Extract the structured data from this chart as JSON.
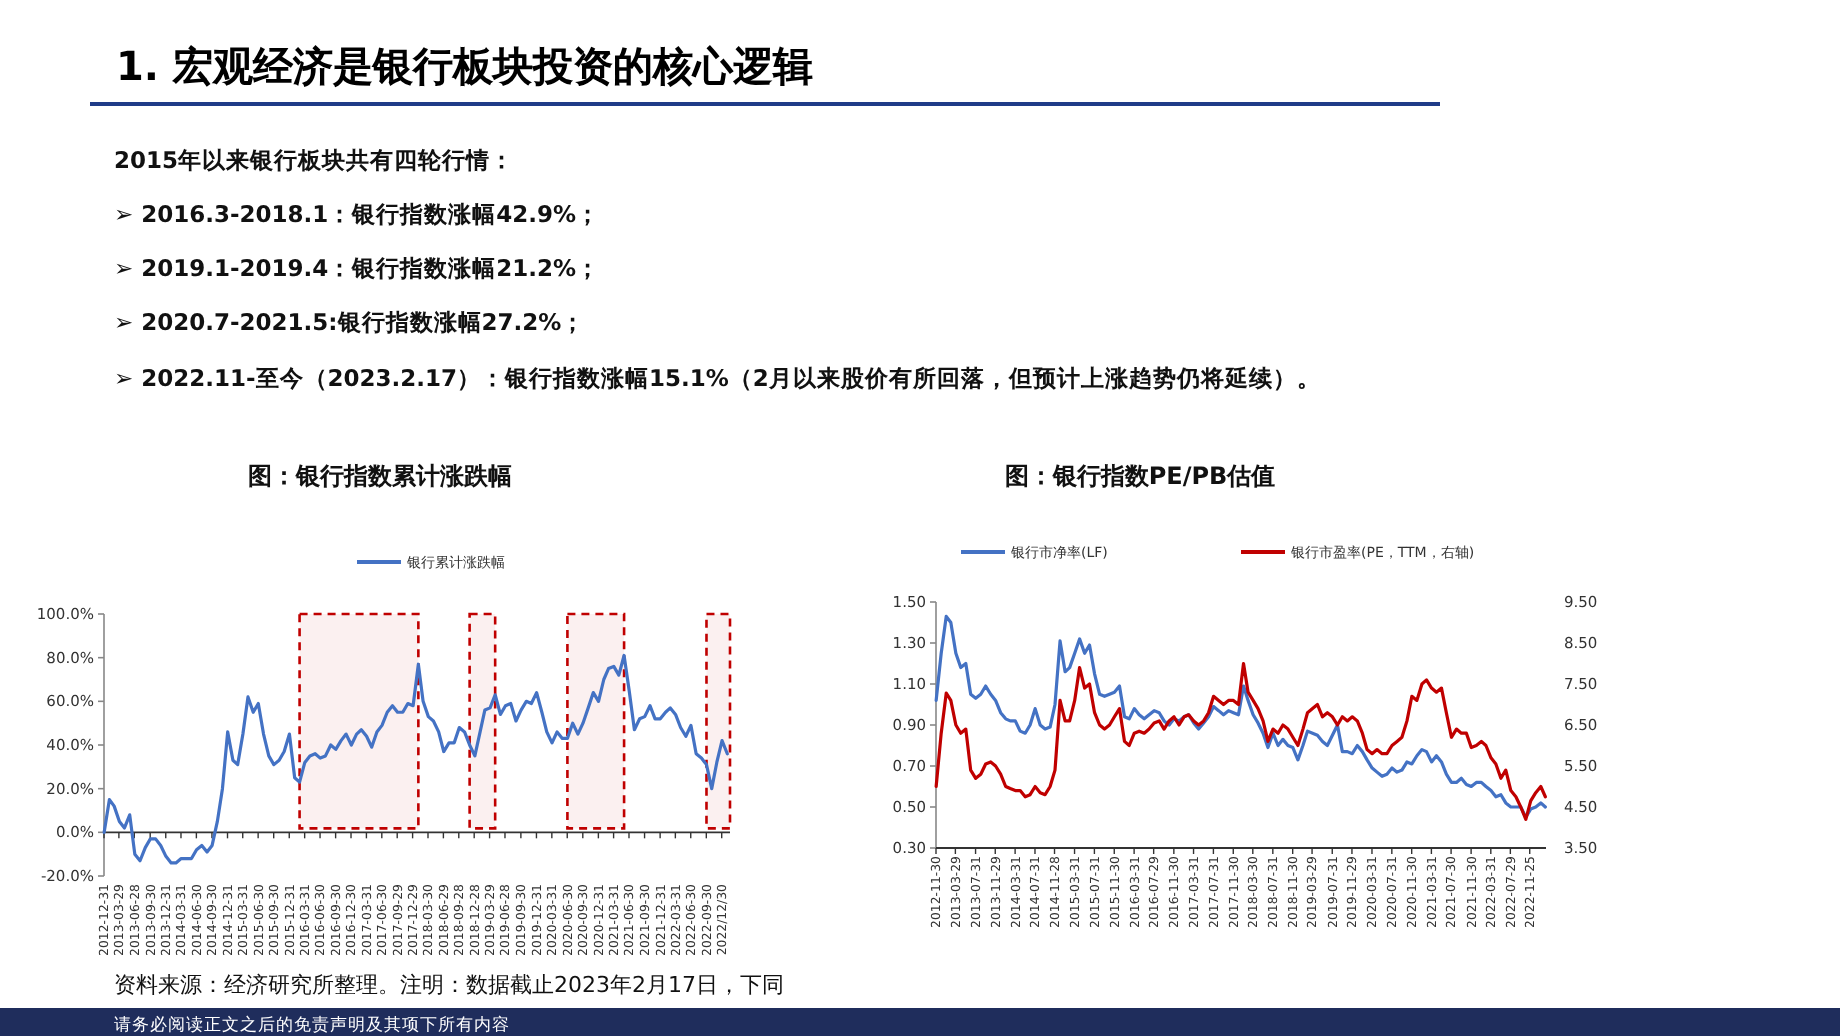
{
  "chart_data": [
    {
      "type": "other",
      "title": "1.  宏观经济是银行板块投资的核心逻辑",
      "annotations": [
        "2015年以来银行板块共有四轮行情：",
        "➢ 2016.3-2018.1：银行指数涨幅42.9%；",
        "➢ 2019.1-2019.4：银行指数涨幅21.2%；",
        "➢ 2020.7-2021.5:银行指数涨幅27.2%；",
        "➢ 2022.11-至今（2023.2.17）：银行指数涨幅15.1%（2月以来股价有所回落，但预计上涨趋势仍将延续）。",
        "资料来源：经济研究所整理。注明：数据截止2023年2月17日，下同",
        "请务必阅读正文之后的免责声明及其项下所有内容"
      ]
    },
    {
      "type": "line",
      "title": "图：银行指数累计涨跌幅",
      "legend": "top",
      "x": [
        "2013-01",
        "2013-02",
        "2013-03",
        "2013-04",
        "2013-05",
        "2013-06",
        "2013-07",
        "2013-08",
        "2013-09",
        "2013-10",
        "2013-11",
        "2013-12",
        "2014-01",
        "2014-02",
        "2014-03",
        "2014-04",
        "2014-05",
        "2014-06",
        "2014-07",
        "2014-08",
        "2014-09",
        "2014-10",
        "2014-11",
        "2014-12",
        "2015-01",
        "2015-02",
        "2015-03",
        "2015-04",
        "2015-05",
        "2015-06",
        "2015-07",
        "2015-08",
        "2015-09",
        "2015-10",
        "2015-11",
        "2015-12",
        "2016-01",
        "2016-02",
        "2016-03",
        "2016-04",
        "2016-05",
        "2016-06",
        "2016-07",
        "2016-08",
        "2016-09",
        "2016-10",
        "2016-11",
        "2016-12",
        "2017-01",
        "2017-02",
        "2017-03",
        "2017-04",
        "2017-05",
        "2017-06",
        "2017-07",
        "2017-08",
        "2017-09",
        "2017-10",
        "2017-11",
        "2017-12",
        "2018-01",
        "2018-02",
        "2018-03",
        "2018-04",
        "2018-05",
        "2018-06",
        "2018-07",
        "2018-08",
        "2018-09",
        "2018-10",
        "2018-11",
        "2018-12",
        "2019-01",
        "2019-02",
        "2019-03",
        "2019-04",
        "2019-05",
        "2019-06",
        "2019-07",
        "2019-08",
        "2019-09",
        "2019-10",
        "2019-11",
        "2019-12",
        "2020-01",
        "2020-02",
        "2020-03",
        "2020-04",
        "2020-05",
        "2020-06",
        "2020-07",
        "2020-08",
        "2020-09",
        "2020-10",
        "2020-11",
        "2020-12",
        "2021-01",
        "2021-02",
        "2021-03",
        "2021-04",
        "2021-05",
        "2021-06",
        "2021-07",
        "2021-08",
        "2021-09",
        "2021-10",
        "2021-11",
        "2021-12",
        "2022-01",
        "2022-02",
        "2022-03",
        "2022-04",
        "2022-05",
        "2022-06",
        "2022-07",
        "2022-08",
        "2022-09",
        "2022-10",
        "2022-11",
        "2022-12",
        "2023-01",
        "2023-02"
      ],
      "series": [
        {
          "name": "银行累计涨跌幅",
          "color": "#4472c4",
          "values": [
            0,
            15,
            12,
            5,
            2,
            8,
            -10,
            -13,
            -7,
            -3,
            -3,
            -6,
            -11,
            -14,
            -14,
            -12,
            -12,
            -12,
            -8,
            -6,
            -9,
            -6,
            5,
            20,
            46,
            33,
            31,
            45,
            62,
            55,
            59,
            45,
            35,
            31,
            33,
            37,
            45,
            25,
            23,
            32,
            35,
            36,
            34,
            35,
            40,
            38,
            42,
            45,
            40,
            45,
            47,
            44,
            39,
            46,
            49,
            55,
            58,
            55,
            55,
            59,
            58,
            77,
            60,
            53,
            51,
            46,
            37,
            41,
            41,
            48,
            46,
            40,
            35,
            46,
            56,
            57,
            63,
            54,
            58,
            59,
            51,
            56,
            60,
            59,
            64,
            55,
            46,
            41,
            46,
            43,
            43,
            50,
            45,
            50,
            57,
            64,
            60,
            70,
            75,
            76,
            72,
            81,
            65,
            47,
            52,
            53,
            58,
            52,
            52,
            55,
            57,
            54,
            48,
            44,
            49,
            36,
            34,
            31,
            20,
            32,
            42,
            36
          ]
        }
      ],
      "xlim": [
        "2012-12-31",
        "2023-02-17"
      ],
      "xticks": [
        "2012-12-31",
        "2013-03-29",
        "2013-06-28",
        "2013-09-30",
        "2013-12-31",
        "2014-03-31",
        "2014-06-30",
        "2014-09-30",
        "2014-12-31",
        "2015-03-31",
        "2015-06-30",
        "2015-09-30",
        "2015-12-31",
        "2016-03-31",
        "2016-06-30",
        "2016-09-30",
        "2016-12-30",
        "2017-03-31",
        "2017-06-30",
        "2017-09-29",
        "2017-12-29",
        "2018-03-30",
        "2018-06-29",
        "2018-09-28",
        "2018-12-28",
        "2019-03-29",
        "2019-06-28",
        "2019-09-30",
        "2019-12-31",
        "2020-03-31",
        "2020-06-30",
        "2020-09-30",
        "2020-12-31",
        "2021-03-31",
        "2021-06-30",
        "2021-09-30",
        "2021-12-31",
        "2022-03-31",
        "2022-06-30",
        "2022-09-30",
        {
          "value": "2022-12-30",
          "label": "2022/12/30"
        }
      ],
      "ylim": [
        -20,
        100
      ],
      "yticks": [
        {
          "value": -20,
          "label": "-20.0%"
        },
        {
          "value": 0,
          "label": "0.0%"
        },
        {
          "value": 20,
          "label": "20.0%"
        },
        {
          "value": 40,
          "label": "40.0%"
        },
        {
          "value": 60,
          "label": "60.0%"
        },
        {
          "value": 80,
          "label": "80.0%"
        },
        {
          "value": 100,
          "label": "100.0%"
        }
      ],
      "bands": [
        {
          "axis": "x",
          "from": "2016-03",
          "to": "2018-02",
          "color": "#c00000"
        },
        {
          "axis": "x",
          "from": "2018-12",
          "to": "2019-05",
          "color": "#c00000"
        },
        {
          "axis": "x",
          "from": "2020-07",
          "to": "2021-06",
          "color": "#c00000"
        },
        {
          "axis": "x",
          "from": "2022-10",
          "to": "2023-02-17",
          "color": "#c00000"
        }
      ]
    },
    {
      "type": "line",
      "title": "图：银行指数PE/PB估值",
      "legend": "top",
      "x": [
        "2012-12",
        "2013-01",
        "2013-02",
        "2013-03",
        "2013-04",
        "2013-05",
        "2013-06",
        "2013-07",
        "2013-08",
        "2013-09",
        "2013-10",
        "2013-11",
        "2013-12",
        "2014-01",
        "2014-02",
        "2014-03",
        "2014-04",
        "2014-05",
        "2014-06",
        "2014-07",
        "2014-08",
        "2014-09",
        "2014-10",
        "2014-11",
        "2014-12",
        "2015-01",
        "2015-02",
        "2015-03",
        "2015-04",
        "2015-05",
        "2015-06",
        "2015-07",
        "2015-08",
        "2015-09",
        "2015-10",
        "2015-11",
        "2015-12",
        "2016-01",
        "2016-02",
        "2016-03",
        "2016-04",
        "2016-05",
        "2016-06",
        "2016-07",
        "2016-08",
        "2016-09",
        "2016-10",
        "2016-11",
        "2016-12",
        "2017-01",
        "2017-02",
        "2017-03",
        "2017-04",
        "2017-05",
        "2017-06",
        "2017-07",
        "2017-08",
        "2017-09",
        "2017-10",
        "2017-11",
        "2017-12",
        "2018-01",
        "2018-02",
        "2018-03",
        "2018-04",
        "2018-05",
        "2018-06",
        "2018-07",
        "2018-08",
        "2018-09",
        "2018-10",
        "2018-11",
        "2018-12",
        "2019-01",
        "2019-02",
        "2019-03",
        "2019-04",
        "2019-05",
        "2019-06",
        "2019-07",
        "2019-08",
        "2019-09",
        "2019-10",
        "2019-11",
        "2019-12",
        "2020-01",
        "2020-02",
        "2020-03",
        "2020-04",
        "2020-05",
        "2020-06",
        "2020-07",
        "2020-08",
        "2020-09",
        "2020-10",
        "2020-11",
        "2020-12",
        "2021-01",
        "2021-02",
        "2021-03",
        "2021-04",
        "2021-05",
        "2021-06",
        "2021-07",
        "2021-08",
        "2021-09",
        "2021-10",
        "2021-11",
        "2021-12",
        "2022-01",
        "2022-02",
        "2022-03",
        "2022-04",
        "2022-05",
        "2022-06",
        "2022-07",
        "2022-08",
        "2022-09",
        "2022-10",
        "2022-11",
        "2022-12",
        "2023-01",
        "2023-02",
        "2023-03"
      ],
      "series": [
        {
          "name": "银行市净率(LF)",
          "color": "#4472c4",
          "values": [
            1.02,
            1.25,
            1.43,
            1.4,
            1.25,
            1.18,
            1.2,
            1.05,
            1.03,
            1.05,
            1.09,
            1.05,
            1.02,
            0.96,
            0.93,
            0.92,
            0.92,
            0.87,
            0.86,
            0.9,
            0.98,
            0.9,
            0.88,
            0.89,
            1.0,
            1.31,
            1.16,
            1.18,
            1.25,
            1.32,
            1.25,
            1.29,
            1.15,
            1.05,
            1.04,
            1.05,
            1.06,
            1.09,
            0.94,
            0.93,
            0.98,
            0.95,
            0.93,
            0.95,
            0.97,
            0.96,
            0.92,
            0.9,
            0.93,
            0.92,
            0.94,
            0.95,
            0.91,
            0.88,
            0.91,
            0.94,
            0.99,
            0.97,
            0.95,
            0.97,
            0.96,
            0.95,
            1.09,
            1.02,
            0.95,
            0.91,
            0.86,
            0.79,
            0.86,
            0.8,
            0.83,
            0.8,
            0.79,
            0.73,
            0.8,
            0.87,
            0.86,
            0.85,
            0.82,
            0.8,
            0.85,
            0.9,
            0.77,
            0.77,
            0.76,
            0.8,
            0.77,
            0.73,
            0.69,
            0.67,
            0.65,
            0.66,
            0.69,
            0.67,
            0.68,
            0.72,
            0.71,
            0.75,
            0.78,
            0.77,
            0.72,
            0.75,
            0.72,
            0.66,
            0.62,
            0.62,
            0.64,
            0.61,
            0.6,
            0.62,
            0.62,
            0.6,
            0.58,
            0.55,
            0.56,
            0.52,
            0.5,
            0.5,
            0.5,
            0.45,
            0.49,
            0.5,
            0.52,
            0.5
          ]
        },
        {
          "name": "银行市盈率(PE，TTM，右轴)",
          "color": "#c00000",
          "axis": "y2",
          "values": [
            5.0,
            6.3,
            7.28,
            7.1,
            6.5,
            6.3,
            6.4,
            5.4,
            5.2,
            5.3,
            5.55,
            5.6,
            5.5,
            5.3,
            5.0,
            4.95,
            4.9,
            4.9,
            4.75,
            4.8,
            5.0,
            4.85,
            4.8,
            5.0,
            5.4,
            7.1,
            6.6,
            6.6,
            7.1,
            7.9,
            7.4,
            7.5,
            6.8,
            6.5,
            6.4,
            6.5,
            6.7,
            6.9,
            6.1,
            6.0,
            6.3,
            6.35,
            6.3,
            6.4,
            6.55,
            6.6,
            6.4,
            6.6,
            6.7,
            6.5,
            6.7,
            6.75,
            6.6,
            6.5,
            6.6,
            6.8,
            7.2,
            7.1,
            7.0,
            7.1,
            7.1,
            7.0,
            8.0,
            7.3,
            7.1,
            6.9,
            6.6,
            6.1,
            6.4,
            6.3,
            6.5,
            6.4,
            6.2,
            6.0,
            6.4,
            6.8,
            6.9,
            7.0,
            6.7,
            6.8,
            6.7,
            6.5,
            6.7,
            6.6,
            6.7,
            6.6,
            6.3,
            5.9,
            5.8,
            5.9,
            5.8,
            5.8,
            6.0,
            6.1,
            6.2,
            6.6,
            7.2,
            7.1,
            7.5,
            7.6,
            7.4,
            7.3,
            7.4,
            6.8,
            6.2,
            6.4,
            6.3,
            6.3,
            5.95,
            6.0,
            6.1,
            6.0,
            5.7,
            5.55,
            5.2,
            5.4,
            4.9,
            4.75,
            4.5,
            4.2,
            4.65,
            4.85,
            5.0,
            4.75
          ]
        }
      ],
      "xlim": [
        "2012-11-30",
        "2023-03-05"
      ],
      "xticks": [
        "2012-11-30",
        "2013-03-29",
        "2013-07-31",
        "2013-11-29",
        "2014-03-31",
        "2014-07-31",
        "2014-11-28",
        "2015-03-31",
        "2015-07-31",
        "2015-11-30",
        "2016-03-31",
        "2016-07-29",
        "2016-11-30",
        "2017-03-31",
        "2017-07-31",
        "2017-11-30",
        "2018-03-30",
        "2018-07-31",
        "2018-11-30",
        "2019-03-29",
        "2019-07-31",
        "2019-11-29",
        "2020-03-31",
        "2020-07-31",
        "2020-11-30",
        "2021-03-31",
        "2021-07-30",
        "2021-11-30",
        "2022-03-31",
        "2022-07-29",
        "2022-11-25"
      ],
      "ylim": [
        0.3,
        1.5
      ],
      "yticks": [
        {
          "value": 0.3,
          "label": "0.30"
        },
        {
          "value": 0.5,
          "label": "0.50"
        },
        {
          "value": 0.7,
          "label": "0.70"
        },
        {
          "value": 0.9,
          "label": "0.90"
        },
        {
          "value": 1.1,
          "label": "1.10"
        },
        {
          "value": 1.3,
          "label": "1.30"
        },
        {
          "value": 1.5,
          "label": "1.50"
        }
      ],
      "y2lim": [
        3.5,
        9.5
      ],
      "y2ticks": [
        {
          "value": 3.5,
          "label": "3.50"
        },
        {
          "value": 4.5,
          "label": "4.50"
        },
        {
          "value": 5.5,
          "label": "5.50"
        },
        {
          "value": 6.5,
          "label": "6.50"
        },
        {
          "value": 7.5,
          "label": "7.50"
        },
        {
          "value": 8.5,
          "label": "8.50"
        },
        {
          "value": 9.5,
          "label": "9.50"
        }
      ]
    }
  ]
}
